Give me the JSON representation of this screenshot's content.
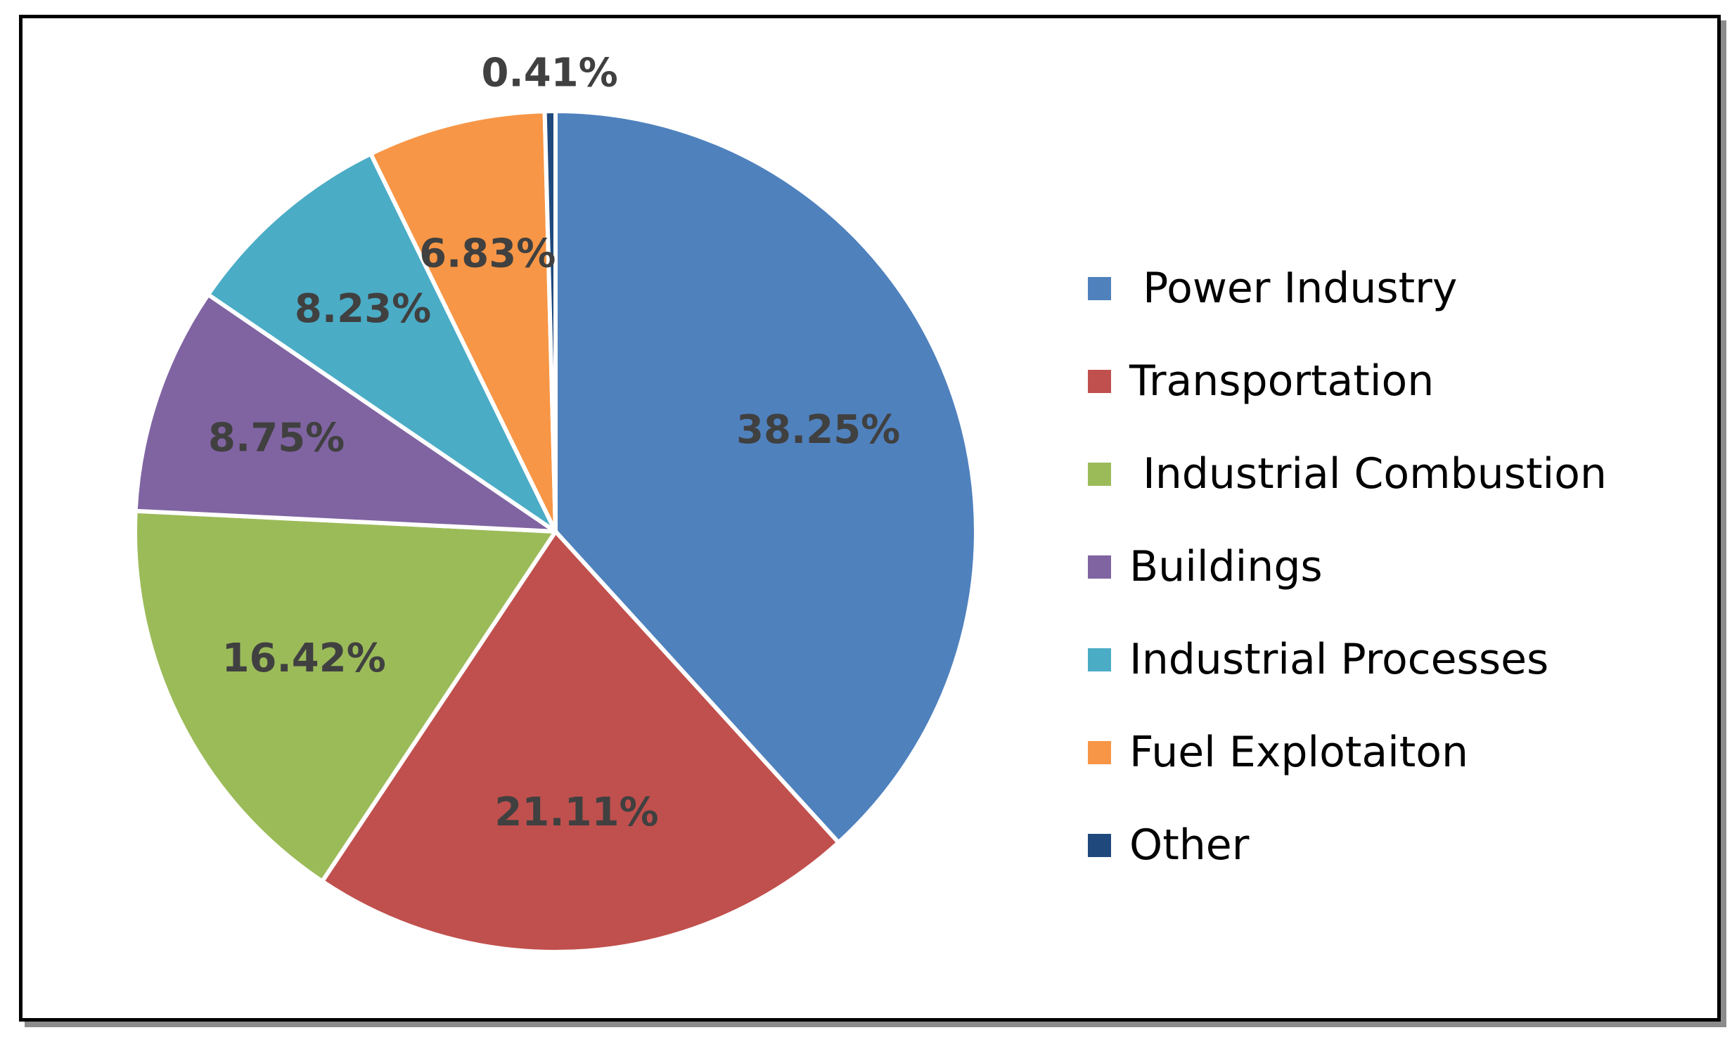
{
  "chart_data": {
    "type": "pie",
    "title": "",
    "slices": [
      {
        "label": " Power Industry",
        "value": 38.25,
        "display": "38.25%",
        "color": "#4f81bd"
      },
      {
        "label": "Transportation",
        "value": 21.11,
        "display": "21.11%",
        "color": "#c0504d"
      },
      {
        "label": " Industrial Combustion",
        "value": 16.42,
        "display": "16.42%",
        "color": "#9bbb59"
      },
      {
        "label": "Buildings",
        "value": 8.75,
        "display": "8.75%",
        "color": "#8064a2"
      },
      {
        "label": "Industrial Processes",
        "value": 8.23,
        "display": "8.23%",
        "color": "#4bacc6"
      },
      {
        "label": "Fuel Explotaiton",
        "value": 6.83,
        "display": "6.83%",
        "color": "#f79646"
      },
      {
        "label": "Other",
        "value": 0.41,
        "display": "0.41%",
        "color": "#1f497d"
      }
    ],
    "legend_position": "right",
    "start_angle": "12 o'clock",
    "direction": "clockwise"
  }
}
